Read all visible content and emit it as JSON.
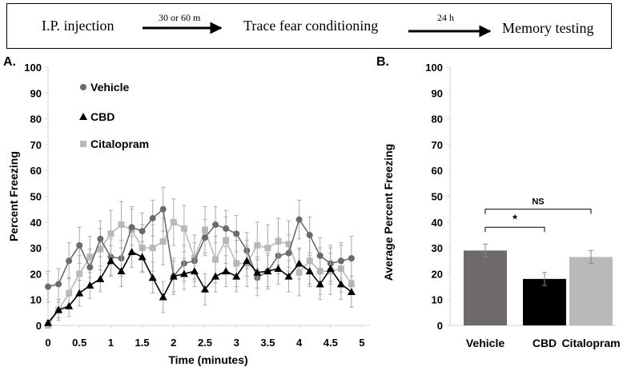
{
  "protocol": {
    "step1": "I.P. injection",
    "arrow1_label": "30 or 60 m",
    "step2": "Trace fear conditioning",
    "arrow2_label": "24 h",
    "step3": "Memory testing"
  },
  "colors": {
    "vehicle": "#6e6a6a",
    "cbd": "#000000",
    "citalopram": "#b9b9b9",
    "axis": "#d9d9d9"
  },
  "chart_data": [
    {
      "panel_label": "A.",
      "type": "line",
      "xlabel": "Time (minutes)",
      "ylabel": "Percent Freezing",
      "xlim": [
        0,
        5
      ],
      "ylim": [
        0,
        100
      ],
      "x_tick_labels": [
        "0",
        "0.5",
        "1",
        "1.5",
        "2",
        "2.5",
        "3",
        "3.5",
        "4",
        "4.5",
        "5"
      ],
      "y_tick_labels": [
        "0",
        "10",
        "20",
        "30",
        "40",
        "50",
        "60",
        "70",
        "80",
        "90",
        "100"
      ],
      "x": [
        0,
        0.167,
        0.333,
        0.5,
        0.667,
        0.833,
        1.0,
        1.167,
        1.333,
        1.5,
        1.667,
        1.833,
        2.0,
        2.167,
        2.333,
        2.5,
        2.667,
        2.833,
        3.0,
        3.167,
        3.333,
        3.5,
        3.667,
        3.833,
        4.0,
        4.167,
        4.333,
        4.5,
        4.667,
        4.833
      ],
      "series": [
        {
          "name": "Vehicle",
          "marker": "circle",
          "values": [
            15,
            16,
            25,
            31,
            22.5,
            33.5,
            26.5,
            26,
            38,
            36.5,
            41.5,
            45,
            19,
            24,
            25,
            34,
            39,
            37.5,
            35.5,
            29,
            18.5,
            21,
            27,
            28,
            41,
            35,
            27,
            24,
            25,
            26
          ],
          "errors": [
            6,
            6,
            7,
            7,
            7,
            7,
            7,
            7,
            7,
            7,
            7,
            8.5,
            7,
            7,
            7,
            7,
            7,
            7,
            7,
            7,
            7,
            7,
            7,
            7,
            7.5,
            7,
            7,
            7,
            7,
            8.5
          ]
        },
        {
          "name": "CBD",
          "marker": "triangle",
          "values": [
            1,
            6,
            7.5,
            12.5,
            15.5,
            18,
            25,
            21,
            28.5,
            26.5,
            18.5,
            11,
            19,
            20,
            21,
            14,
            19,
            21,
            19,
            25,
            20.5,
            21,
            22,
            19,
            24,
            21,
            16,
            22,
            16,
            13
          ],
          "errors": [
            1,
            3,
            4,
            5,
            5,
            5,
            6,
            6,
            6,
            6,
            6,
            6,
            6,
            6,
            6,
            6,
            6,
            6,
            6,
            6,
            6,
            6,
            6,
            6,
            6,
            6,
            6,
            6,
            6,
            6
          ]
        },
        {
          "name": "Citalopram",
          "marker": "square",
          "values": [
            0,
            6,
            12.5,
            20,
            26.5,
            29.5,
            35.5,
            39,
            37,
            30,
            30,
            32.5,
            40,
            37.5,
            26,
            37,
            25.5,
            33,
            24,
            24,
            31,
            30,
            32.5,
            31.5,
            20.5,
            25,
            21,
            21,
            22,
            16
          ],
          "errors": [
            1,
            4,
            6,
            7,
            8,
            8,
            9,
            9,
            9,
            9,
            9,
            9,
            9,
            9,
            9,
            9,
            9,
            9,
            9,
            9,
            9,
            9,
            9,
            9,
            9,
            9,
            9,
            9,
            9,
            9
          ]
        }
      ],
      "legend_placement": "top-left"
    },
    {
      "panel_label": "B.",
      "type": "bar",
      "ylabel": "Average Percent Freezing",
      "categories": [
        "Vehicle",
        "CBD",
        "Citalopram"
      ],
      "values": [
        29,
        18,
        26.5
      ],
      "errors": [
        2.5,
        2.5,
        2.5
      ],
      "ylim": [
        0,
        100
      ],
      "y_tick_labels": [
        "0",
        "10",
        "20",
        "30",
        "40",
        "50",
        "60",
        "70",
        "80",
        "90",
        "100"
      ],
      "annotations": [
        {
          "text": "*",
          "from": "Vehicle",
          "to": "CBD",
          "level": 38
        },
        {
          "text": "NS",
          "from": "Vehicle",
          "to": "Citalopram",
          "level": 45
        }
      ]
    }
  ]
}
